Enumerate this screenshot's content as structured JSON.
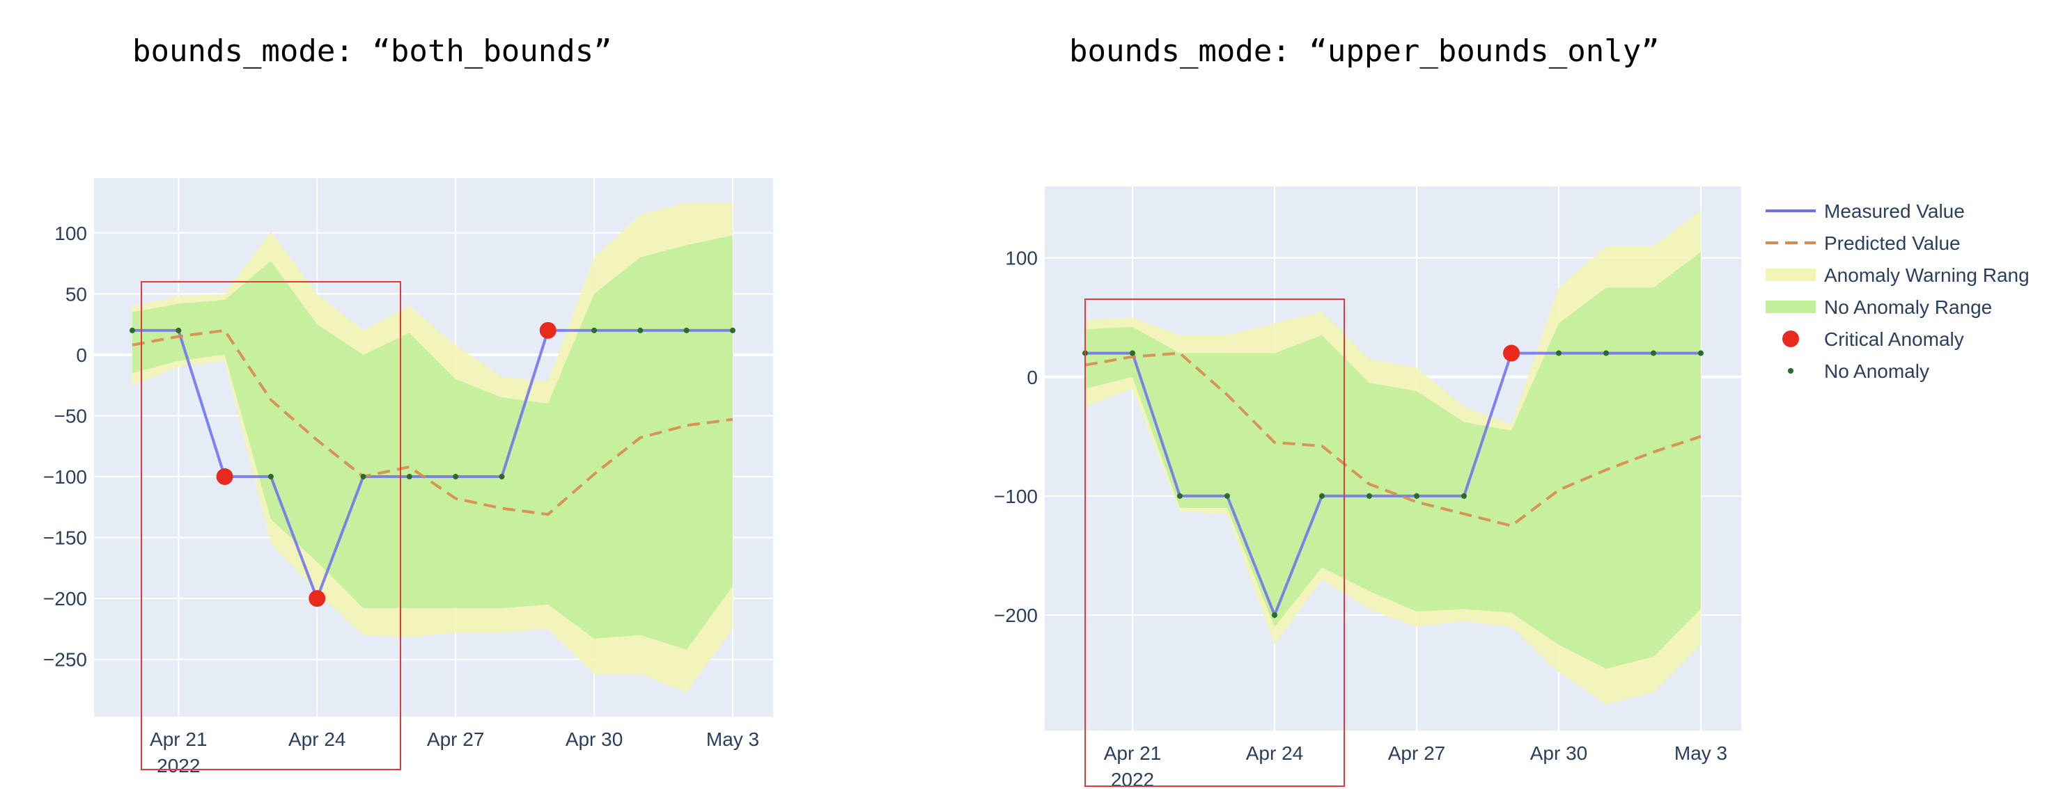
{
  "chart_data": [
    {
      "type": "line",
      "title": "bounds_mode: “both_bounds”",
      "x": [
        "2022-04-20",
        "2022-04-21",
        "2022-04-22",
        "2022-04-23",
        "2022-04-24",
        "2022-04-25",
        "2022-04-26",
        "2022-04-27",
        "2022-04-28",
        "2022-04-29",
        "2022-04-30",
        "2022-05-01",
        "2022-05-02",
        "2022-05-03"
      ],
      "x_ticks": [
        {
          "date": "2022-04-21",
          "label": "Apr 21",
          "sublabel": "2022"
        },
        {
          "date": "2022-04-24",
          "label": "Apr 24"
        },
        {
          "date": "2022-04-27",
          "label": "Apr 27"
        },
        {
          "date": "2022-04-30",
          "label": "Apr 30"
        },
        {
          "date": "2022-05-03",
          "label": "May 3"
        }
      ],
      "y_ticks": [
        100,
        50,
        0,
        -50,
        -100,
        -150,
        -200,
        -250
      ],
      "ylim": [
        -297,
        145
      ],
      "grid": true,
      "series": [
        {
          "name": "Measured Value",
          "values": [
            20,
            20,
            -100,
            -100,
            -200,
            -100,
            -100,
            -100,
            -100,
            20,
            20,
            20,
            20,
            20
          ]
        },
        {
          "name": "Predicted Value",
          "values": [
            8,
            15,
            20,
            -37,
            -70,
            -100,
            -92,
            -118,
            -126,
            -131,
            -98,
            -68,
            -58,
            -53
          ]
        }
      ],
      "anomaly_warning_range": {
        "upper": [
          40,
          48,
          50,
          101,
          50,
          20,
          40,
          8,
          -18,
          -22,
          80,
          115,
          125,
          125
        ],
        "lower": [
          -25,
          -10,
          -5,
          -155,
          -195,
          -230,
          -232,
          -228,
          -228,
          -225,
          -262,
          -262,
          -277,
          -225
        ]
      },
      "no_anomaly_range": {
        "upper": [
          35,
          42,
          45,
          77,
          25,
          0,
          18,
          -20,
          -35,
          -40,
          50,
          80,
          90,
          98
        ],
        "lower": [
          -15,
          -5,
          0,
          -135,
          -170,
          -208,
          -208,
          -208,
          -208,
          -205,
          -233,
          -230,
          -242,
          -190
        ]
      },
      "critical_anomalies": [
        {
          "x": "2022-04-22",
          "y": -100
        },
        {
          "x": "2022-04-24",
          "y": -200
        },
        {
          "x": "2022-04-29",
          "y": 20
        }
      ],
      "no_anomalies": [
        {
          "x": "2022-04-20",
          "y": 20
        },
        {
          "x": "2022-04-21",
          "y": 20
        },
        {
          "x": "2022-04-23",
          "y": -100
        },
        {
          "x": "2022-04-25",
          "y": -100
        },
        {
          "x": "2022-04-26",
          "y": -100
        },
        {
          "x": "2022-04-27",
          "y": -100
        },
        {
          "x": "2022-04-28",
          "y": -100
        },
        {
          "x": "2022-04-30",
          "y": 20
        },
        {
          "x": "2022-05-01",
          "y": 20
        },
        {
          "x": "2022-05-02",
          "y": 20
        },
        {
          "x": "2022-05-03",
          "y": 20
        }
      ],
      "highlight_box": {
        "x_from": "2022-04-20",
        "x_to": "2022-04-25",
        "note": "red outline around early period"
      }
    },
    {
      "type": "line",
      "title": "bounds_mode: “upper_bounds_only”",
      "x": [
        "2022-04-20",
        "2022-04-21",
        "2022-04-22",
        "2022-04-23",
        "2022-04-24",
        "2022-04-25",
        "2022-04-26",
        "2022-04-27",
        "2022-04-28",
        "2022-04-29",
        "2022-04-30",
        "2022-05-01",
        "2022-05-02",
        "2022-05-03"
      ],
      "x_ticks": [
        {
          "date": "2022-04-21",
          "label": "Apr 21",
          "sublabel": "2022"
        },
        {
          "date": "2022-04-24",
          "label": "Apr 24"
        },
        {
          "date": "2022-04-27",
          "label": "Apr 27"
        },
        {
          "date": "2022-04-30",
          "label": "Apr 30"
        },
        {
          "date": "2022-05-03",
          "label": "May 3"
        }
      ],
      "y_ticks": [
        100,
        0,
        -100,
        -200
      ],
      "ylim": [
        -297,
        160
      ],
      "grid": true,
      "series": [
        {
          "name": "Measured Value",
          "values": [
            20,
            20,
            -100,
            -100,
            -200,
            -100,
            -100,
            -100,
            -100,
            20,
            20,
            20,
            20,
            20
          ]
        },
        {
          "name": "Predicted Value",
          "values": [
            10,
            17,
            20,
            -15,
            -55,
            -58,
            -90,
            -105,
            -115,
            -125,
            -95,
            -78,
            -63,
            -50
          ]
        }
      ],
      "anomaly_warning_range": {
        "upper": [
          48,
          50,
          35,
          35,
          45,
          55,
          15,
          8,
          -25,
          -40,
          75,
          110,
          110,
          140
        ],
        "lower": [
          -25,
          -10,
          -113,
          -115,
          -225,
          -170,
          -195,
          -210,
          -205,
          -210,
          -248,
          -275,
          -265,
          -225
        ]
      },
      "no_anomaly_range": {
        "upper": [
          40,
          42,
          20,
          20,
          20,
          35,
          -5,
          -12,
          -38,
          -45,
          45,
          75,
          75,
          105
        ],
        "lower": [
          -10,
          0,
          -110,
          -110,
          -210,
          -160,
          -180,
          -197,
          -195,
          -198,
          -225,
          -245,
          -235,
          -195
        ]
      },
      "critical_anomalies": [
        {
          "x": "2022-04-29",
          "y": 20
        }
      ],
      "no_anomalies": [
        {
          "x": "2022-04-20",
          "y": 20
        },
        {
          "x": "2022-04-21",
          "y": 20
        },
        {
          "x": "2022-04-22",
          "y": -100
        },
        {
          "x": "2022-04-23",
          "y": -100
        },
        {
          "x": "2022-04-24",
          "y": -200
        },
        {
          "x": "2022-04-25",
          "y": -100
        },
        {
          "x": "2022-04-26",
          "y": -100
        },
        {
          "x": "2022-04-27",
          "y": -100
        },
        {
          "x": "2022-04-28",
          "y": -100
        },
        {
          "x": "2022-04-30",
          "y": 20
        },
        {
          "x": "2022-05-01",
          "y": 20
        },
        {
          "x": "2022-05-02",
          "y": 20
        },
        {
          "x": "2022-05-03",
          "y": 20
        }
      ],
      "highlight_box": {
        "x_from": "2022-04-20",
        "x_to": "2022-04-25",
        "note": "red outline around early period"
      },
      "legend": {
        "placement": "right",
        "items": [
          {
            "label": "Measured Value",
            "kind": "line"
          },
          {
            "label": "Predicted Value",
            "kind": "dash"
          },
          {
            "label": "Anomaly Warning Rang",
            "kind": "band-warning"
          },
          {
            "label": "No Anomaly Range",
            "kind": "band-ok"
          },
          {
            "label": "Critical Anomaly",
            "kind": "big-dot"
          },
          {
            "label": "No Anomaly",
            "kind": "small-dot"
          }
        ]
      }
    }
  ],
  "colors": {
    "plot_bg": "#e5ecf6",
    "grid": "#ffffff",
    "measured": "#6c6ef0",
    "predicted": "#d98a4a",
    "warning_band": "#f3f5b6",
    "ok_band": "#c2f09a",
    "critical": "#e8291c",
    "no_anomaly": "#2b6b2b",
    "highlight_box": "#e13a3a",
    "tick_text": "#2a3f5f"
  }
}
